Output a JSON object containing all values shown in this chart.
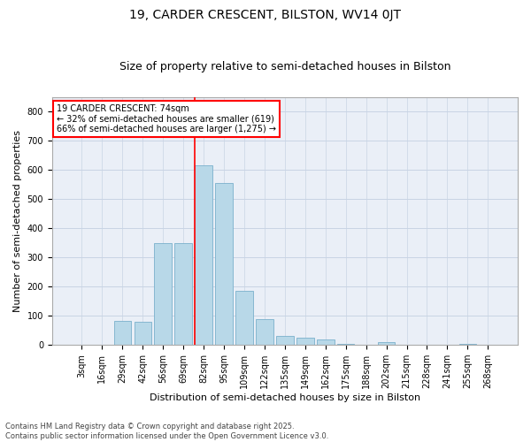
{
  "title_line1": "19, CARDER CRESCENT, BILSTON, WV14 0JT",
  "title_line2": "Size of property relative to semi-detached houses in Bilston",
  "xlabel": "Distribution of semi-detached houses by size in Bilston",
  "ylabel": "Number of semi-detached properties",
  "categories": [
    "3sqm",
    "16sqm",
    "29sqm",
    "42sqm",
    "56sqm",
    "69sqm",
    "82sqm",
    "95sqm",
    "109sqm",
    "122sqm",
    "135sqm",
    "149sqm",
    "162sqm",
    "175sqm",
    "188sqm",
    "202sqm",
    "215sqm",
    "228sqm",
    "241sqm",
    "255sqm",
    "268sqm"
  ],
  "values": [
    0,
    2,
    82,
    80,
    350,
    350,
    615,
    555,
    185,
    90,
    32,
    25,
    18,
    5,
    0,
    10,
    0,
    0,
    0,
    5,
    0
  ],
  "bar_color": "#b8d8e8",
  "bar_edge_color": "#7ab0cc",
  "vline_color": "red",
  "vline_index": 6,
  "ylim": [
    0,
    850
  ],
  "yticks": [
    0,
    100,
    200,
    300,
    400,
    500,
    600,
    700,
    800
  ],
  "annotation_title": "19 CARDER CRESCENT: 74sqm",
  "annotation_line1": "← 32% of semi-detached houses are smaller (619)",
  "annotation_line2": "66% of semi-detached houses are larger (1,275) →",
  "annotation_box_color": "red",
  "footnote_line1": "Contains HM Land Registry data © Crown copyright and database right 2025.",
  "footnote_line2": "Contains public sector information licensed under the Open Government Licence v3.0.",
  "grid_color": "#c8d4e4",
  "background_color": "#eaeff7",
  "title1_fontsize": 10,
  "title2_fontsize": 9,
  "ylabel_fontsize": 8,
  "xlabel_fontsize": 8,
  "tick_fontsize": 7,
  "footnote_fontsize": 6
}
